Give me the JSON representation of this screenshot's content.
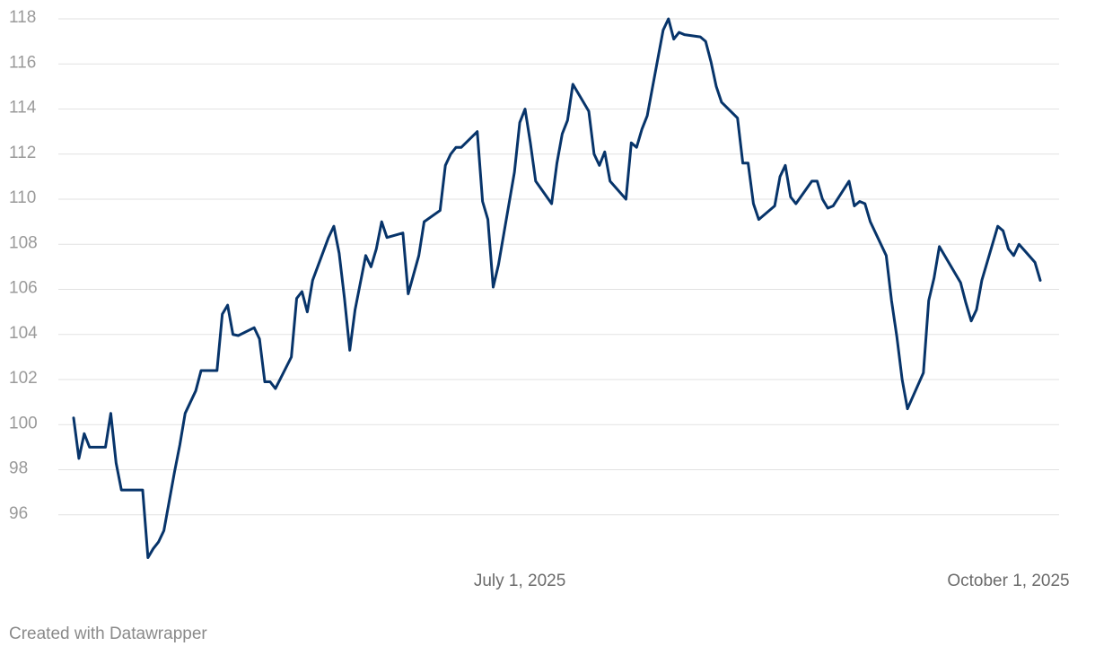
{
  "chart_data": {
    "type": "line",
    "credit": "Created with Datawrapper",
    "x": [
      "2025-04-08",
      "2025-04-09",
      "2025-04-10",
      "2025-04-11",
      "2025-04-14",
      "2025-04-15",
      "2025-04-16",
      "2025-04-17",
      "2025-04-21",
      "2025-04-22",
      "2025-04-23",
      "2025-04-24",
      "2025-04-25",
      "2025-04-26",
      "2025-04-27",
      "2025-04-28",
      "2025-04-29",
      "2025-05-01",
      "2025-05-02",
      "2025-05-05",
      "2025-05-06",
      "2025-05-07",
      "2025-05-08",
      "2025-05-09",
      "2025-05-12",
      "2025-05-13",
      "2025-05-14",
      "2025-05-15",
      "2025-05-16",
      "2025-05-19",
      "2025-05-20",
      "2025-05-21",
      "2025-05-22",
      "2025-05-23",
      "2025-05-26",
      "2025-05-27",
      "2025-05-28",
      "2025-05-29",
      "2025-05-30",
      "2025-05-31",
      "2025-06-02",
      "2025-06-03",
      "2025-06-04",
      "2025-06-05",
      "2025-06-06",
      "2025-06-09",
      "2025-06-10",
      "2025-06-12",
      "2025-06-13",
      "2025-06-16",
      "2025-06-17",
      "2025-06-18",
      "2025-06-19",
      "2025-06-20",
      "2025-06-23",
      "2025-06-24",
      "2025-06-25",
      "2025-06-26",
      "2025-06-27",
      "2025-06-30",
      "2025-07-01",
      "2025-07-02",
      "2025-07-03",
      "2025-07-04",
      "2025-07-07",
      "2025-07-08",
      "2025-07-09",
      "2025-07-10",
      "2025-07-11",
      "2025-07-14",
      "2025-07-15",
      "2025-07-16",
      "2025-07-17",
      "2025-07-18",
      "2025-07-21",
      "2025-07-22",
      "2025-07-23",
      "2025-07-24",
      "2025-07-25",
      "2025-07-28",
      "2025-07-29",
      "2025-07-30",
      "2025-07-31",
      "2025-08-01",
      "2025-08-04",
      "2025-08-05",
      "2025-08-06",
      "2025-08-07",
      "2025-08-08",
      "2025-08-11",
      "2025-08-12",
      "2025-08-13",
      "2025-08-14",
      "2025-08-15",
      "2025-08-18",
      "2025-08-19",
      "2025-08-20",
      "2025-08-21",
      "2025-08-22",
      "2025-08-25",
      "2025-08-26",
      "2025-08-27",
      "2025-08-28",
      "2025-08-29",
      "2025-09-01",
      "2025-09-02",
      "2025-09-03",
      "2025-09-04",
      "2025-09-05",
      "2025-09-08",
      "2025-09-09",
      "2025-09-10",
      "2025-09-11",
      "2025-09-12",
      "2025-09-15",
      "2025-09-16",
      "2025-09-17",
      "2025-09-18",
      "2025-09-22",
      "2025-09-23",
      "2025-09-24",
      "2025-09-25",
      "2025-09-26",
      "2025-09-29",
      "2025-09-30",
      "2025-10-01",
      "2025-10-02",
      "2025-10-03",
      "2025-10-06",
      "2025-10-07"
    ],
    "series": [
      {
        "color": "#07346a",
        "values": [
          100.3,
          98.5,
          99.6,
          99.0,
          99.0,
          100.5,
          98.3,
          97.1,
          97.1,
          94.1,
          94.5,
          94.8,
          95.3,
          96.6,
          97.9,
          99.1,
          100.5,
          101.5,
          102.4,
          102.4,
          104.9,
          105.3,
          104.0,
          103.95,
          104.3,
          103.8,
          101.9,
          101.9,
          101.6,
          103.0,
          105.6,
          105.9,
          105.0,
          106.4,
          108.3,
          108.8,
          107.6,
          105.6,
          103.3,
          105.1,
          107.5,
          107.0,
          107.8,
          109.0,
          108.3,
          108.5,
          105.8,
          107.5,
          109.0,
          109.5,
          111.5,
          112.0,
          112.3,
          112.3,
          113.0,
          109.9,
          109.1,
          106.1,
          107.1,
          111.2,
          113.4,
          114.0,
          112.5,
          110.8,
          109.8,
          111.6,
          112.9,
          113.5,
          115.1,
          113.9,
          112.0,
          111.5,
          112.1,
          110.8,
          110.0,
          112.5,
          112.3,
          113.1,
          113.7,
          117.5,
          118.0,
          117.1,
          117.4,
          117.3,
          117.2,
          117.0,
          116.1,
          115.0,
          114.3,
          113.6,
          111.6,
          111.6,
          109.8,
          109.1,
          109.7,
          111.0,
          111.5,
          110.1,
          109.8,
          110.8,
          110.8,
          110.0,
          109.6,
          109.7,
          110.8,
          109.7,
          109.9,
          109.8,
          109.0,
          107.5,
          105.5,
          103.9,
          102.0,
          100.7,
          102.3,
          105.5,
          106.5,
          107.9,
          106.3,
          105.4,
          104.6,
          105.1,
          106.4,
          108.8,
          108.6,
          107.8,
          107.5,
          108.0,
          107.2,
          106.4
        ]
      }
    ],
    "xlim": [
      "2025-04-08",
      "2025-10-07"
    ],
    "xticks": [
      {
        "value": "2025-07-01",
        "label": "July 1, 2025"
      },
      {
        "value": "2025-10-01",
        "label": "October 1, 2025"
      }
    ],
    "ylim": [
      94,
      118
    ],
    "yticks": [
      96,
      98,
      100,
      102,
      104,
      106,
      108,
      110,
      112,
      114,
      116,
      118
    ],
    "grid": true
  }
}
